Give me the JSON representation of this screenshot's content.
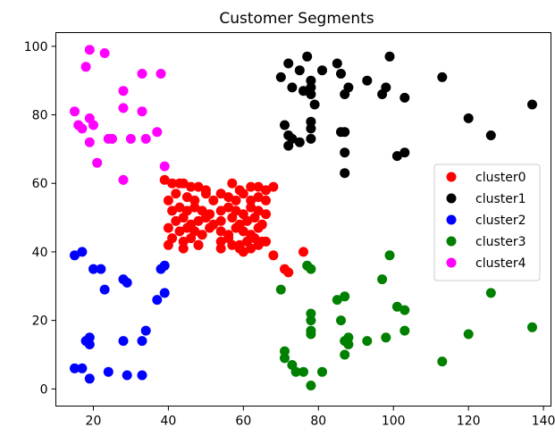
{
  "chart_data": {
    "type": "scatter",
    "title": "Customer Segments",
    "xlabel": "",
    "ylabel": "",
    "xlim": [
      10,
      142
    ],
    "ylim": [
      -5,
      104
    ],
    "xticks": [
      20,
      40,
      60,
      80,
      100,
      120,
      140
    ],
    "yticks": [
      0,
      20,
      40,
      60,
      80,
      100
    ],
    "grid": false,
    "legend_position": "center-right",
    "series": [
      {
        "name": "cluster0",
        "color": "#ff0000",
        "points": [
          [
            39,
            61
          ],
          [
            41,
            60
          ],
          [
            43,
            60
          ],
          [
            44,
            60
          ],
          [
            46,
            59
          ],
          [
            48,
            59
          ],
          [
            50,
            58
          ],
          [
            57,
            60
          ],
          [
            59,
            58
          ],
          [
            62,
            59
          ],
          [
            64,
            59
          ],
          [
            66,
            58
          ],
          [
            68,
            59
          ],
          [
            40,
            55
          ],
          [
            42,
            57
          ],
          [
            45,
            56
          ],
          [
            47,
            55
          ],
          [
            50,
            57
          ],
          [
            52,
            55
          ],
          [
            54,
            57
          ],
          [
            56,
            56
          ],
          [
            58,
            55
          ],
          [
            60,
            57
          ],
          [
            62,
            55
          ],
          [
            64,
            56
          ],
          [
            66,
            55
          ],
          [
            41,
            52
          ],
          [
            43,
            53
          ],
          [
            45,
            52
          ],
          [
            47,
            53
          ],
          [
            49,
            52
          ],
          [
            51,
            51
          ],
          [
            54,
            52
          ],
          [
            56,
            53
          ],
          [
            58,
            52
          ],
          [
            60,
            51
          ],
          [
            62,
            53
          ],
          [
            64,
            52
          ],
          [
            66,
            51
          ],
          [
            42,
            49
          ],
          [
            44,
            50
          ],
          [
            46,
            48
          ],
          [
            48,
            49
          ],
          [
            50,
            50
          ],
          [
            52,
            48
          ],
          [
            54,
            49
          ],
          [
            57,
            50
          ],
          [
            59,
            48
          ],
          [
            61,
            49
          ],
          [
            63,
            50
          ],
          [
            65,
            48
          ],
          [
            40,
            47
          ],
          [
            43,
            46
          ],
          [
            45,
            47
          ],
          [
            47,
            46
          ],
          [
            49,
            45
          ],
          [
            51,
            47
          ],
          [
            54,
            46
          ],
          [
            56,
            45
          ],
          [
            58,
            47
          ],
          [
            60,
            46
          ],
          [
            62,
            45
          ],
          [
            64,
            47
          ],
          [
            41,
            44
          ],
          [
            44,
            43
          ],
          [
            46,
            44
          ],
          [
            48,
            42
          ],
          [
            54,
            43
          ],
          [
            56,
            44
          ],
          [
            59,
            42
          ],
          [
            61,
            43
          ],
          [
            63,
            44
          ],
          [
            65,
            43
          ],
          [
            40,
            42
          ],
          [
            44,
            41
          ],
          [
            48,
            42
          ],
          [
            54,
            41
          ],
          [
            57,
            42
          ],
          [
            59,
            41
          ],
          [
            60,
            40
          ],
          [
            62,
            41
          ],
          [
            64,
            42
          ],
          [
            66,
            43
          ],
          [
            68,
            39
          ],
          [
            71,
            35
          ],
          [
            72,
            34
          ],
          [
            76,
            40
          ]
        ]
      },
      {
        "name": "cluster1",
        "color": "#000000",
        "points": [
          [
            70,
            91
          ],
          [
            72,
            95
          ],
          [
            73,
            88
          ],
          [
            75,
            93
          ],
          [
            76,
            87
          ],
          [
            77,
            97
          ],
          [
            78,
            90
          ],
          [
            78,
            88
          ],
          [
            78,
            86
          ],
          [
            79,
            83
          ],
          [
            81,
            93
          ],
          [
            85,
            95
          ],
          [
            86,
            92
          ],
          [
            87,
            86
          ],
          [
            88,
            88
          ],
          [
            93,
            90
          ],
          [
            97,
            86
          ],
          [
            98,
            88
          ],
          [
            99,
            97
          ],
          [
            103,
            85
          ],
          [
            113,
            91
          ],
          [
            137,
            83
          ],
          [
            71,
            77
          ],
          [
            72,
            74
          ],
          [
            72,
            71
          ],
          [
            73,
            73
          ],
          [
            75,
            72
          ],
          [
            78,
            78
          ],
          [
            78,
            76
          ],
          [
            78,
            73
          ],
          [
            86,
            75
          ],
          [
            87,
            75
          ],
          [
            87,
            69
          ],
          [
            87,
            63
          ],
          [
            101,
            68
          ],
          [
            103,
            69
          ],
          [
            120,
            79
          ],
          [
            126,
            74
          ]
        ]
      },
      {
        "name": "cluster2",
        "color": "#0000ff",
        "points": [
          [
            15,
            39
          ],
          [
            17,
            40
          ],
          [
            20,
            35
          ],
          [
            22,
            35
          ],
          [
            23,
            29
          ],
          [
            28,
            32
          ],
          [
            29,
            31
          ],
          [
            37,
            26
          ],
          [
            38,
            35
          ],
          [
            39,
            36
          ],
          [
            39,
            28
          ],
          [
            18,
            14
          ],
          [
            19,
            15
          ],
          [
            19,
            13
          ],
          [
            28,
            14
          ],
          [
            33,
            14
          ],
          [
            34,
            17
          ],
          [
            15,
            6
          ],
          [
            17,
            6
          ],
          [
            19,
            3
          ],
          [
            24,
            5
          ],
          [
            29,
            4
          ],
          [
            33,
            4
          ]
        ]
      },
      {
        "name": "cluster3",
        "color": "#008000",
        "points": [
          [
            70,
            29
          ],
          [
            77,
            36
          ],
          [
            78,
            35
          ],
          [
            85,
            26
          ],
          [
            87,
            27
          ],
          [
            97,
            32
          ],
          [
            99,
            39
          ],
          [
            101,
            24
          ],
          [
            103,
            23
          ],
          [
            126,
            28
          ],
          [
            137,
            18
          ],
          [
            120,
            16
          ],
          [
            78,
            22
          ],
          [
            78,
            20
          ],
          [
            78,
            17
          ],
          [
            78,
            16
          ],
          [
            86,
            20
          ],
          [
            87,
            14
          ],
          [
            88,
            15
          ],
          [
            88,
            13
          ],
          [
            93,
            14
          ],
          [
            98,
            15
          ],
          [
            103,
            17
          ],
          [
            113,
            8
          ],
          [
            71,
            11
          ],
          [
            71,
            9
          ],
          [
            73,
            7
          ],
          [
            74,
            5
          ],
          [
            76,
            5
          ],
          [
            78,
            1
          ],
          [
            81,
            5
          ],
          [
            87,
            10
          ]
        ]
      },
      {
        "name": "cluster4",
        "color": "#ff00ff",
        "points": [
          [
            19,
            99
          ],
          [
            23,
            98
          ],
          [
            18,
            94
          ],
          [
            33,
            92
          ],
          [
            38,
            92
          ],
          [
            28,
            87
          ],
          [
            28,
            82
          ],
          [
            33,
            81
          ],
          [
            15,
            81
          ],
          [
            19,
            79
          ],
          [
            16,
            77
          ],
          [
            17,
            76
          ],
          [
            20,
            77
          ],
          [
            19,
            72
          ],
          [
            24,
            73
          ],
          [
            25,
            73
          ],
          [
            30,
            73
          ],
          [
            34,
            73
          ],
          [
            37,
            75
          ],
          [
            21,
            66
          ],
          [
            28,
            61
          ],
          [
            39,
            65
          ]
        ]
      }
    ]
  }
}
